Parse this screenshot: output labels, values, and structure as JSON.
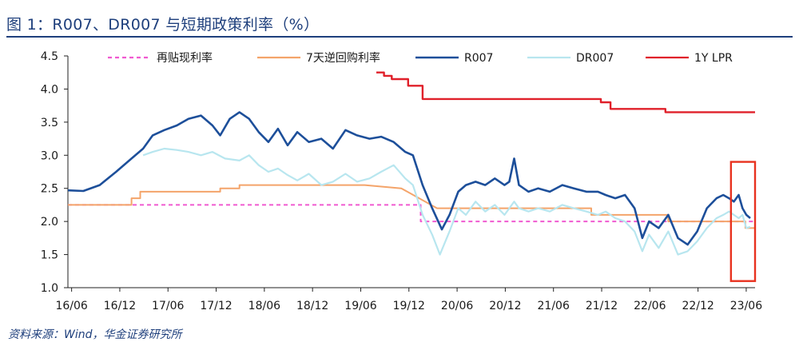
{
  "header": {
    "title": "图 1：R007、DR007 与短期政策利率（%）",
    "source": "资料来源：Wind，华金证券研究所"
  },
  "chart_data": {
    "type": "line",
    "title": "图 1：R007、DR007 与短期政策利率（%）",
    "xlabel": "",
    "ylabel": "",
    "ylim": [
      1.0,
      4.5
    ],
    "yticks": [
      1.0,
      1.5,
      2.0,
      2.5,
      3.0,
      3.5,
      4.0,
      4.5
    ],
    "xlim": [
      2016.42,
      2023.55
    ],
    "xticks": [
      "16/06",
      "16/12",
      "17/06",
      "17/12",
      "18/06",
      "18/12",
      "19/06",
      "19/12",
      "20/06",
      "20/12",
      "21/06",
      "21/12",
      "22/06",
      "22/12",
      "23/06"
    ],
    "grid": false,
    "legend": "top",
    "highlight_box": {
      "x": [
        2023.3,
        2023.55
      ],
      "y": [
        1.1,
        2.9
      ],
      "color": "#e8321f"
    },
    "series": [
      {
        "name": "再贴现利率",
        "color": "#f05ad0",
        "style": "dashed",
        "x": [
          2016.42,
          2020.08,
          2020.08,
          2023.55
        ],
        "y": [
          2.25,
          2.25,
          2.0,
          2.0
        ]
      },
      {
        "name": "7天逆回购利率",
        "color": "#f4a46a",
        "style": "step",
        "x": [
          2016.42,
          2017.08,
          2017.08,
          2017.17,
          2017.17,
          2018.0,
          2018.0,
          2018.2,
          2018.2,
          2019.5,
          2019.5,
          2019.88,
          2019.88,
          2020.25,
          2020.25,
          2021.85,
          2021.85,
          2022.45,
          2022.45,
          2022.65,
          2022.65,
          2023.45,
          2023.45,
          2023.55
        ],
        "y": [
          2.25,
          2.25,
          2.35,
          2.35,
          2.45,
          2.45,
          2.5,
          2.5,
          2.55,
          2.55,
          2.55,
          2.5,
          2.5,
          2.2,
          2.2,
          2.2,
          2.1,
          2.1,
          2.1,
          2.1,
          2.0,
          2.0,
          1.9,
          1.9
        ]
      },
      {
        "name": "R007",
        "color": "#1d4f9a",
        "style": "solid",
        "x": [
          2016.42,
          2016.58,
          2016.75,
          2016.92,
          2017.08,
          2017.2,
          2017.3,
          2017.42,
          2017.55,
          2017.67,
          2017.8,
          2017.92,
          2018.0,
          2018.1,
          2018.2,
          2018.3,
          2018.4,
          2018.5,
          2018.6,
          2018.7,
          2018.8,
          2018.92,
          2019.05,
          2019.17,
          2019.3,
          2019.42,
          2019.55,
          2019.67,
          2019.8,
          2019.92,
          2020.0,
          2020.1,
          2020.2,
          2020.3,
          2020.38,
          2020.47,
          2020.55,
          2020.65,
          2020.75,
          2020.85,
          2020.95,
          2021.0,
          2021.05,
          2021.1,
          2021.2,
          2021.3,
          2021.42,
          2021.55,
          2021.67,
          2021.8,
          2021.92,
          2022.0,
          2022.1,
          2022.2,
          2022.3,
          2022.38,
          2022.45,
          2022.55,
          2022.65,
          2022.75,
          2022.85,
          2022.95,
          2023.05,
          2023.15,
          2023.22,
          2023.28,
          2023.33,
          2023.38,
          2023.42,
          2023.46,
          2023.5
        ],
        "y": [
          2.47,
          2.46,
          2.55,
          2.75,
          2.95,
          3.1,
          3.3,
          3.38,
          3.45,
          3.55,
          3.6,
          3.45,
          3.3,
          3.55,
          3.65,
          3.55,
          3.35,
          3.2,
          3.4,
          3.15,
          3.35,
          3.2,
          3.25,
          3.1,
          3.38,
          3.3,
          3.25,
          3.28,
          3.2,
          3.05,
          3.0,
          2.55,
          2.2,
          1.88,
          2.1,
          2.45,
          2.55,
          2.6,
          2.55,
          2.65,
          2.55,
          2.6,
          2.95,
          2.55,
          2.45,
          2.5,
          2.45,
          2.55,
          2.5,
          2.45,
          2.45,
          2.4,
          2.35,
          2.4,
          2.2,
          1.75,
          2.0,
          1.9,
          2.1,
          1.75,
          1.65,
          1.85,
          2.2,
          2.35,
          2.4,
          2.35,
          2.3,
          2.4,
          2.2,
          2.1,
          2.05
        ]
      },
      {
        "name": "DR007",
        "color": "#b8e6ef",
        "style": "solid",
        "x": [
          2017.2,
          2017.3,
          2017.42,
          2017.55,
          2017.67,
          2017.8,
          2017.92,
          2018.05,
          2018.2,
          2018.3,
          2018.4,
          2018.5,
          2018.6,
          2018.7,
          2018.8,
          2018.92,
          2019.05,
          2019.17,
          2019.3,
          2019.42,
          2019.55,
          2019.67,
          2019.8,
          2019.92,
          2020.0,
          2020.1,
          2020.2,
          2020.28,
          2020.38,
          2020.47,
          2020.55,
          2020.65,
          2020.75,
          2020.85,
          2020.95,
          2021.05,
          2021.1,
          2021.2,
          2021.3,
          2021.42,
          2021.55,
          2021.67,
          2021.8,
          2021.92,
          2022.0,
          2022.1,
          2022.2,
          2022.3,
          2022.38,
          2022.45,
          2022.55,
          2022.65,
          2022.75,
          2022.85,
          2022.95,
          2023.05,
          2023.15,
          2023.22,
          2023.28,
          2023.33,
          2023.38,
          2023.42,
          2023.46,
          2023.5
        ],
        "y": [
          3.0,
          3.05,
          3.1,
          3.08,
          3.05,
          3.0,
          3.05,
          2.95,
          2.92,
          3.0,
          2.85,
          2.75,
          2.8,
          2.7,
          2.62,
          2.72,
          2.55,
          2.6,
          2.72,
          2.6,
          2.65,
          2.75,
          2.85,
          2.65,
          2.55,
          2.1,
          1.8,
          1.5,
          1.85,
          2.2,
          2.1,
          2.3,
          2.15,
          2.25,
          2.1,
          2.3,
          2.2,
          2.15,
          2.2,
          2.15,
          2.25,
          2.2,
          2.15,
          2.1,
          2.15,
          2.05,
          2.0,
          1.85,
          1.55,
          1.8,
          1.6,
          1.85,
          1.5,
          1.55,
          1.7,
          1.9,
          2.05,
          2.1,
          2.15,
          2.1,
          2.05,
          2.1,
          1.9,
          1.92
        ]
      },
      {
        "name": "1Y LPR",
        "color": "#e0202a",
        "style": "step",
        "x": [
          2019.62,
          2019.7,
          2019.7,
          2019.78,
          2019.78,
          2019.95,
          2019.95,
          2020.1,
          2020.1,
          2020.3,
          2020.3,
          2021.95,
          2021.95,
          2022.05,
          2022.05,
          2022.62,
          2022.62,
          2023.55
        ],
        "y": [
          4.25,
          4.25,
          4.2,
          4.2,
          4.15,
          4.15,
          4.05,
          4.05,
          3.85,
          3.85,
          3.85,
          3.85,
          3.8,
          3.8,
          3.7,
          3.7,
          3.65,
          3.65
        ]
      }
    ]
  }
}
